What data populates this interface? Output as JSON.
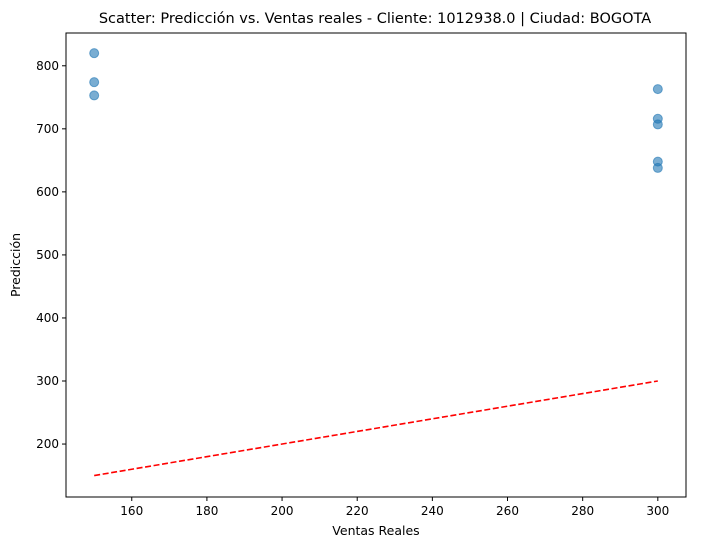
{
  "chart_data": {
    "type": "scatter",
    "title": "Scatter: Predicción vs. Ventas reales - Cliente: 1012938.0 | Ciudad: BOGOTA",
    "xlabel": "Ventas Reales",
    "ylabel": "Predicción",
    "xlim": [
      142.5,
      307.5
    ],
    "ylim": [
      116,
      852
    ],
    "xticks": [
      160,
      180,
      200,
      220,
      240,
      260,
      280,
      300
    ],
    "yticks": [
      200,
      300,
      400,
      500,
      600,
      700,
      800
    ],
    "grid": false,
    "series": [
      {
        "type": "scatter",
        "color": "#1f77b4",
        "opacity": 0.6,
        "points": [
          {
            "x": 150,
            "y": 820
          },
          {
            "x": 150,
            "y": 774
          },
          {
            "x": 150,
            "y": 753
          },
          {
            "x": 300,
            "y": 763
          },
          {
            "x": 300,
            "y": 716
          },
          {
            "x": 300,
            "y": 707
          },
          {
            "x": 300,
            "y": 648
          },
          {
            "x": 300,
            "y": 638
          }
        ]
      },
      {
        "type": "line",
        "style": "dashed",
        "color": "#ff0000",
        "points": [
          {
            "x": 150,
            "y": 150
          },
          {
            "x": 300,
            "y": 300
          }
        ]
      }
    ]
  }
}
